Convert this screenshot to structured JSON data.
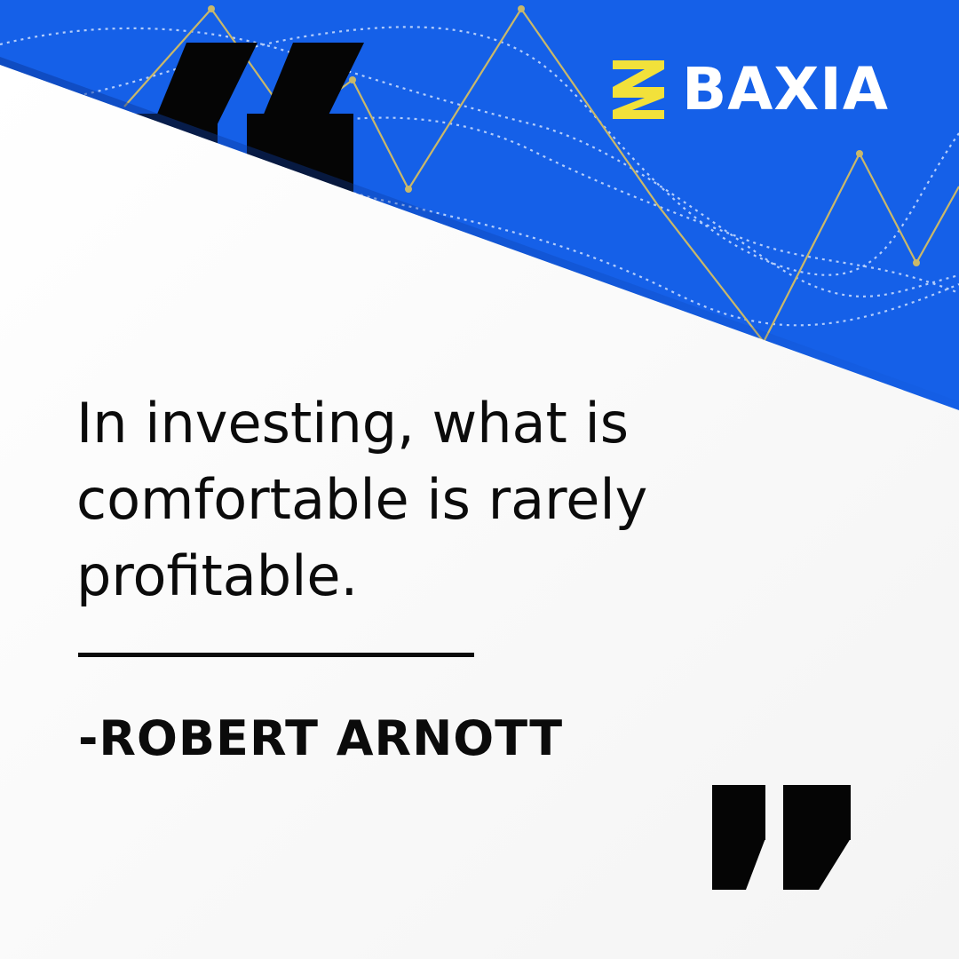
{
  "brand": {
    "name": "BAXIA",
    "accent": "#f2e13a",
    "background": "#1560e8",
    "text_color": "#ffffff"
  },
  "quote": {
    "lines": [
      "In investing, what is",
      "comfortable is rarely",
      "profitable."
    ],
    "author": "-ROBERT ARNOTT"
  },
  "icons": [
    "open-quote-icon",
    "close-quote-icon",
    "baxia-logo-icon"
  ]
}
